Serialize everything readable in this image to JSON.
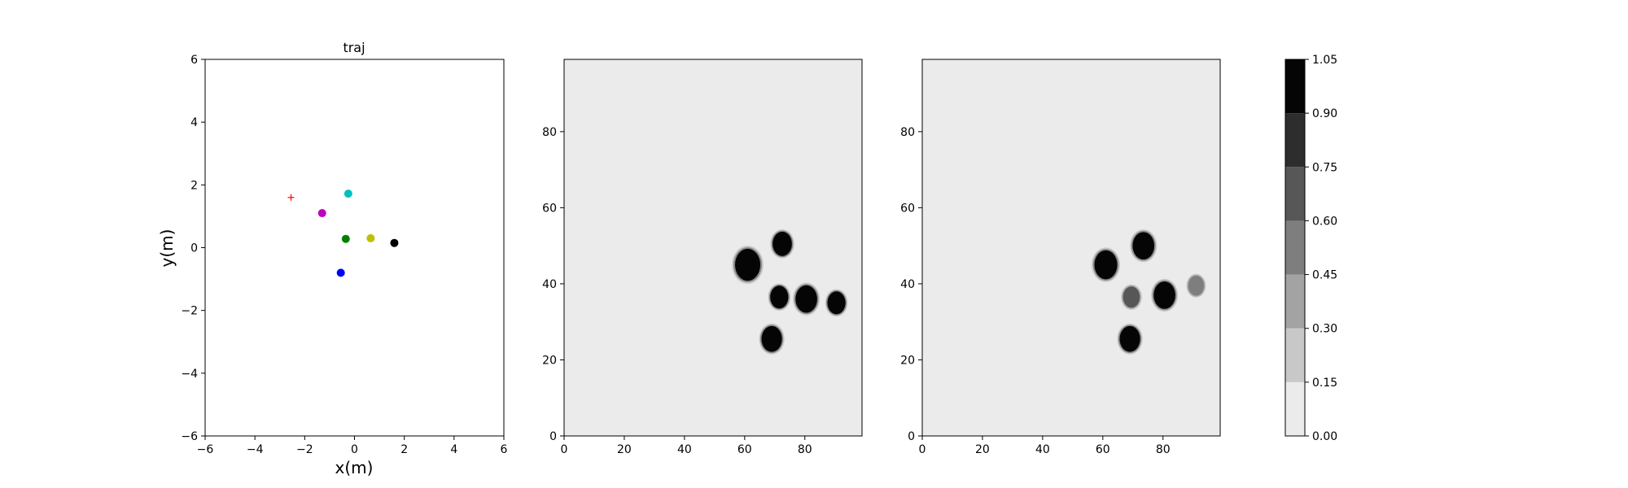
{
  "chart_data": [
    {
      "type": "scatter",
      "title": "traj",
      "xlabel": "x(m)",
      "ylabel": "y(m)",
      "xlim": [
        -6,
        6
      ],
      "ylim": [
        -6,
        6
      ],
      "xticks": [
        "−6",
        "−4",
        "−2",
        "0",
        "2",
        "4",
        "6"
      ],
      "yticks": [
        "−6",
        "−4",
        "−2",
        "0",
        "2",
        "4",
        "6"
      ],
      "grid": false,
      "points": [
        {
          "x": -2.55,
          "y": 1.6,
          "color": "#ff0000",
          "marker": "plus"
        },
        {
          "x": -1.3,
          "y": 1.1,
          "color": "#bf00bf",
          "marker": "circle"
        },
        {
          "x": -0.25,
          "y": 1.72,
          "color": "#00bfbf",
          "marker": "circle"
        },
        {
          "x": -0.35,
          "y": 0.28,
          "color": "#008000",
          "marker": "circle"
        },
        {
          "x": 0.65,
          "y": 0.3,
          "color": "#bfbf00",
          "marker": "circle"
        },
        {
          "x": 1.6,
          "y": 0.15,
          "color": "#000000",
          "marker": "circle"
        },
        {
          "x": -0.55,
          "y": -0.8,
          "color": "#0000ff",
          "marker": "circle"
        }
      ]
    },
    {
      "type": "heatmap",
      "title": "",
      "xlim": [
        0,
        99
      ],
      "ylim": [
        0,
        99
      ],
      "xticks": [
        "0",
        "20",
        "40",
        "60",
        "80"
      ],
      "yticks": [
        "0",
        "20",
        "40",
        "60",
        "80"
      ],
      "background_level": 0.0,
      "blobs": [
        {
          "x": 61,
          "y": 45,
          "r": 4.2,
          "level": 1.0
        },
        {
          "x": 72.5,
          "y": 50.5,
          "r": 3.2,
          "level": 1.0
        },
        {
          "x": 71.5,
          "y": 36.5,
          "r": 3.0,
          "level": 1.0
        },
        {
          "x": 80.5,
          "y": 36,
          "r": 3.6,
          "level": 1.0
        },
        {
          "x": 90.5,
          "y": 35,
          "r": 3.0,
          "level": 1.0
        },
        {
          "x": 69,
          "y": 25.5,
          "r": 3.4,
          "level": 1.0
        }
      ]
    },
    {
      "type": "heatmap",
      "title": "",
      "xlim": [
        0,
        99
      ],
      "ylim": [
        0,
        99
      ],
      "xticks": [
        "0",
        "20",
        "40",
        "60",
        "80"
      ],
      "yticks": [
        "0",
        "20",
        "40",
        "60",
        "80"
      ],
      "background_level": 0.0,
      "blobs": [
        {
          "x": 61,
          "y": 45,
          "r": 3.8,
          "level": 1.0
        },
        {
          "x": 73.5,
          "y": 50,
          "r": 3.6,
          "level": 1.0
        },
        {
          "x": 69.5,
          "y": 36.5,
          "r": 2.8,
          "level": 0.65
        },
        {
          "x": 80.5,
          "y": 37,
          "r": 3.6,
          "level": 1.0
        },
        {
          "x": 91,
          "y": 39.5,
          "r": 2.6,
          "level": 0.55
        },
        {
          "x": 69,
          "y": 25.5,
          "r": 3.4,
          "level": 1.0
        }
      ]
    },
    {
      "type": "colorbar",
      "ticks": [
        "0.00",
        "0.15",
        "0.30",
        "0.45",
        "0.60",
        "0.75",
        "0.90",
        "1.05"
      ],
      "levels": [
        0.0,
        0.15,
        0.3,
        0.45,
        0.6,
        0.75,
        0.9,
        1.05
      ],
      "band_colors": [
        "#ebebeb",
        "#c8c8c8",
        "#a3a3a3",
        "#7e7e7e",
        "#575757",
        "#2d2d2d",
        "#050505"
      ]
    }
  ]
}
